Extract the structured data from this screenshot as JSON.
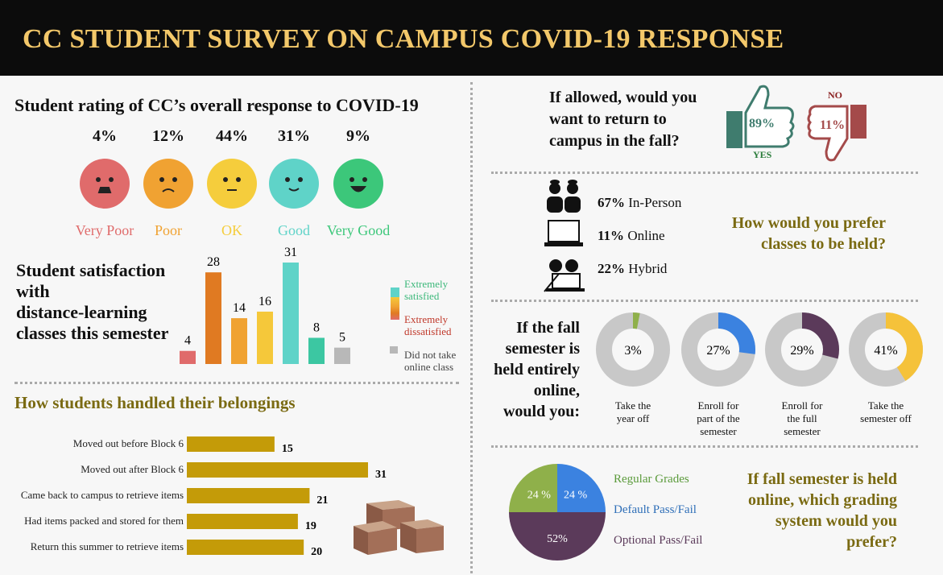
{
  "title": "CC STUDENT SURVEY ON CAMPUS COVID-19 RESPONSE",
  "rating": {
    "heading": "Student rating of CC’s overall response to COVID-19",
    "items": [
      {
        "pct": "4%",
        "label": "Very Poor",
        "color": "#e06b6b"
      },
      {
        "pct": "12%",
        "label": "Poor",
        "color": "#f0a232"
      },
      {
        "pct": "44%",
        "label": "OK",
        "color": "#f5cd3c"
      },
      {
        "pct": "31%",
        "label": "Good",
        "color": "#5fd3c8"
      },
      {
        "pct": "9%",
        "label": "Very Good",
        "color": "#3cc77a"
      }
    ]
  },
  "satisfaction": {
    "heading_lines": [
      "Student satisfaction",
      "with",
      "distance-learning",
      "classes this semester"
    ],
    "legend": {
      "top": "Extremely satisfied",
      "bottom": "Extremely dissatisfied",
      "gray": "Did not take online class"
    }
  },
  "belongings": {
    "heading": "How students handled their belongings"
  },
  "return": {
    "question_lines": [
      "If allowed, would you",
      "want to return to",
      "campus in the fall?"
    ],
    "yes_pct": "89%",
    "yes_label": "YES",
    "no_pct": "11%",
    "no_label": "NO"
  },
  "classes": {
    "rows": [
      {
        "pct": "67%",
        "label": "In-Person"
      },
      {
        "pct": "11%",
        "label": "Online"
      },
      {
        "pct": "22%",
        "label": "Hybrid"
      }
    ],
    "question_lines": [
      "How would you prefer",
      "classes to be held?"
    ]
  },
  "online": {
    "question_lines": [
      "If the fall",
      "semester is",
      "held entirely",
      "online,",
      "would you:"
    ],
    "donuts": [
      {
        "pct": "3%",
        "value": 3,
        "color": "#8fb04a",
        "label_lines": [
          "Take the",
          "year off"
        ]
      },
      {
        "pct": "27%",
        "value": 27,
        "color": "#3b82e0",
        "label_lines": [
          "Enroll for",
          "part of the",
          "semester"
        ]
      },
      {
        "pct": "29%",
        "value": 29,
        "color": "#5b3a5a",
        "label_lines": [
          "Enroll for",
          "the full",
          "semester"
        ]
      },
      {
        "pct": "41%",
        "value": 41,
        "color": "#f5c23a",
        "label_lines": [
          "Take the",
          "semester off"
        ]
      }
    ]
  },
  "grading": {
    "legend": [
      {
        "label": "Regular Grades",
        "color": "#8fb04a"
      },
      {
        "label": "Default Pass/Fail",
        "color": "#3b82e0"
      },
      {
        "label": "Optional Pass/Fail",
        "color": "#5b3a5a"
      }
    ],
    "question_lines": [
      "If fall semester is held",
      "online, which grading",
      "system would you",
      "prefer?"
    ]
  },
  "chart_data": [
    {
      "type": "bar",
      "values": [
        4,
        28,
        14,
        16,
        31,
        8,
        5
      ],
      "colors": [
        "#e06b6b",
        "#e07a22",
        "#f0a232",
        "#f5c83a",
        "#5fd3c8",
        "#3cc7a2",
        "#b8b8b8"
      ],
      "ylim": [
        0,
        31
      ]
    },
    {
      "type": "bar",
      "orientation": "horizontal",
      "categories": [
        "Moved out before Block 6",
        "Moved out after Block 6",
        "Came back to campus to retrieve items",
        "Had items packed and stored for them",
        "Return this summer to retrieve items"
      ],
      "values": [
        15,
        31,
        21,
        19,
        20
      ],
      "color": "#c49b08"
    },
    {
      "type": "pie",
      "slices": [
        {
          "label": "Regular Grades",
          "value": 24,
          "text": "24 %"
        },
        {
          "label": "Default Pass/Fail",
          "value": 24,
          "text": "24 %"
        },
        {
          "label": "Optional Pass/Fail",
          "value": 52,
          "text": "52%"
        }
      ]
    }
  ]
}
